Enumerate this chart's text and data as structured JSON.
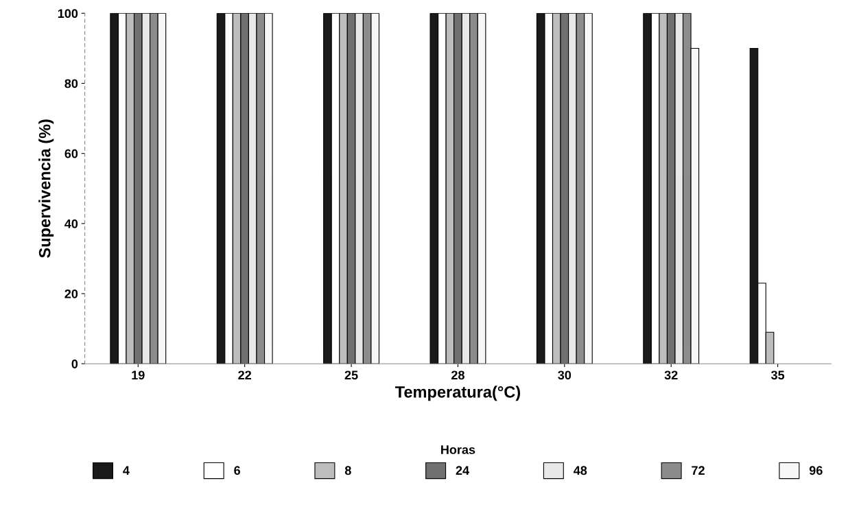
{
  "chart_data": {
    "type": "bar",
    "xlabel": "Temperatura(°C)",
    "ylabel": "Supervivencia (%)",
    "legend_title": "Horas",
    "categories": [
      "19",
      "22",
      "25",
      "28",
      "30",
      "32",
      "35"
    ],
    "series": [
      {
        "name": "4",
        "color": "#1a1a1a",
        "values": [
          100,
          100,
          100,
          100,
          100,
          100,
          90
        ]
      },
      {
        "name": "6",
        "color": "#ffffff",
        "values": [
          100,
          100,
          100,
          100,
          100,
          100,
          23
        ]
      },
      {
        "name": "8",
        "color": "#bdbdbd",
        "values": [
          100,
          100,
          100,
          100,
          100,
          100,
          9
        ]
      },
      {
        "name": "24",
        "color": "#707070",
        "values": [
          100,
          100,
          100,
          100,
          100,
          100,
          0
        ]
      },
      {
        "name": "48",
        "color": "#e8e8e8",
        "values": [
          100,
          100,
          100,
          100,
          100,
          100,
          0
        ]
      },
      {
        "name": "72",
        "color": "#8c8c8c",
        "values": [
          100,
          100,
          100,
          100,
          100,
          100,
          0
        ]
      },
      {
        "name": "96",
        "color": "#f7f7f7",
        "values": [
          100,
          100,
          100,
          100,
          100,
          90,
          0
        ]
      }
    ],
    "ylim": [
      0,
      100
    ],
    "yticks": [
      0,
      20,
      40,
      60,
      80,
      100
    ],
    "grid": false,
    "legend": "bottom"
  }
}
